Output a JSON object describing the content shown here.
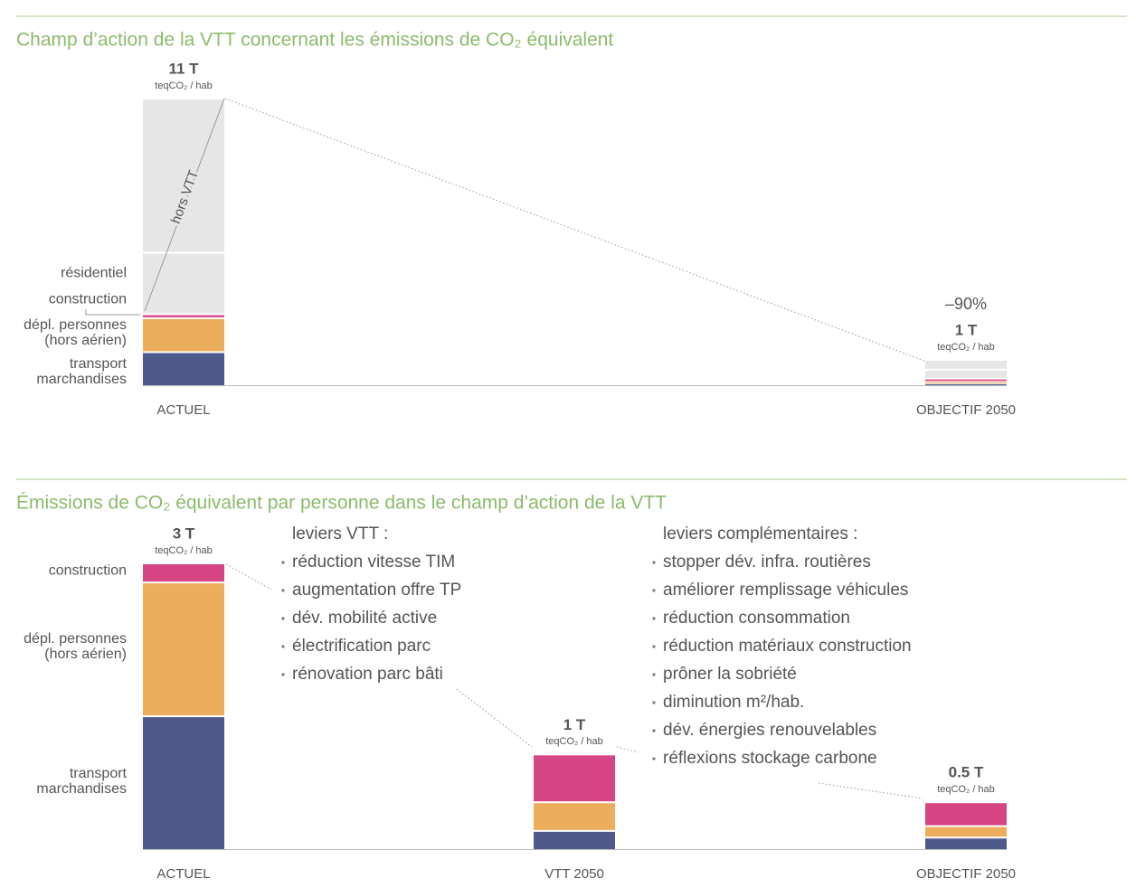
{
  "chart_data": [
    {
      "type": "bar",
      "stacked": true,
      "title": "Champ d’action de la VTT concernant les émissions de CO₂ équivalent",
      "categories": [
        "ACTUEL",
        "OBJECTIF 2050"
      ],
      "series": [
        {
          "name": "transport marchandises",
          "color": "#4e5a8c",
          "values": [
            1.3,
            0.08
          ]
        },
        {
          "name": "dépl. personnes (hors aérien)",
          "color": "#ecae5d",
          "values": [
            1.3,
            0.08
          ]
        },
        {
          "name": "construction",
          "color": "#d64584",
          "values": [
            0.15,
            0.12
          ]
        },
        {
          "name": "résidentiel",
          "color": "#e6e6e6",
          "values": [
            2.35,
            0.35
          ]
        },
        {
          "name": "hors VTT",
          "color": "#e6e6e6",
          "values": [
            5.9,
            0.37
          ]
        }
      ],
      "totals": {
        "values": [
          11,
          1
        ],
        "value_labels": [
          "11 T",
          "1 T"
        ]
      },
      "unit": "teqCO₂ / hab",
      "annotation": "–90%",
      "ylim": [
        0,
        11
      ]
    },
    {
      "type": "bar",
      "stacked": true,
      "title": "Émissions de CO₂ équivalent par personne dans le champ d’action de la VTT",
      "categories": [
        "ACTUEL",
        "VTT 2050",
        "OBJECTIF 2050"
      ],
      "series": [
        {
          "name": "transport marchandises",
          "color": "#4e5a8c",
          "values": [
            1.4,
            0.2,
            0.13
          ]
        },
        {
          "name": "dépl. personnes (hors aérien)",
          "color": "#ecae5d",
          "values": [
            1.4,
            0.3,
            0.12
          ]
        },
        {
          "name": "construction",
          "color": "#d64584",
          "values": [
            0.2,
            0.5,
            0.25
          ]
        }
      ],
      "totals": {
        "values": [
          3,
          1,
          0.5
        ],
        "value_labels": [
          "3 T",
          "1 T",
          "0.5 T"
        ]
      },
      "unit": "teqCO₂ / hab",
      "ylim": [
        0,
        3
      ],
      "levers": [
        {
          "title": "leviers VTT :",
          "items": [
            "réduction vitesse TIM",
            "augmentation offre TP",
            "dév. mobilité active",
            "électrification parc",
            "rénovation parc bâti"
          ]
        },
        {
          "title": "leviers complémentaires :",
          "items": [
            "stopper dév. infra. routières",
            "améliorer remplissage véhicules",
            "réduction consommation",
            "réduction matériaux construction",
            "prôner la sobriété",
            "diminution m²/hab.",
            "dév. énergies renouvelables",
            "réflexions stockage carbone"
          ]
        }
      ]
    }
  ]
}
